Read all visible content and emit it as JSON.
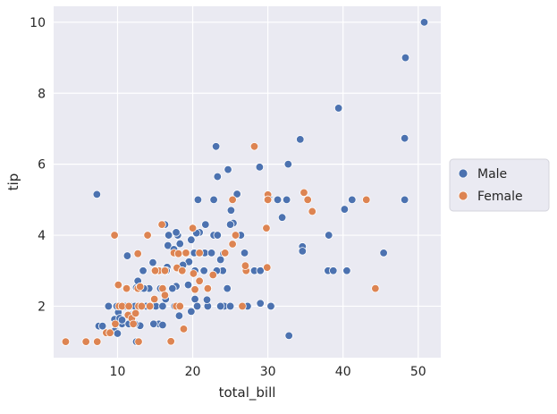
{
  "chart_data": {
    "type": "scatter",
    "title": "",
    "xlabel": "total_bill",
    "ylabel": "tip",
    "xlim": [
      1.5,
      53.0
    ],
    "ylim": [
      0.55,
      10.45
    ],
    "xticks": [
      10,
      20,
      30,
      40,
      50
    ],
    "yticks": [
      2,
      4,
      6,
      8,
      10
    ],
    "grid": true,
    "legend": {
      "position": "center-right"
    },
    "colors": {
      "Male": "#4c72b0",
      "Female": "#dd8452",
      "plot_bg": "#eaeaf2",
      "grid": "#ffffff",
      "legend_bg": "#eaeaf2"
    },
    "series": [
      {
        "name": "Male",
        "points": [
          [
            50.8,
            10.0
          ],
          [
            48.3,
            9.0
          ],
          [
            39.4,
            7.58
          ],
          [
            48.2,
            6.73
          ],
          [
            34.3,
            6.7
          ],
          [
            23.1,
            6.5
          ],
          [
            32.7,
            6.0
          ],
          [
            28.9,
            5.92
          ],
          [
            24.7,
            5.85
          ],
          [
            23.3,
            5.65
          ],
          [
            25.9,
            5.16
          ],
          [
            30.1,
            5.07
          ],
          [
            29.9,
            5.0
          ],
          [
            31.3,
            5.0
          ],
          [
            32.5,
            5.0
          ],
          [
            41.2,
            5.0
          ],
          [
            48.2,
            5.0
          ],
          [
            22.8,
            5.0
          ],
          [
            20.7,
            5.0
          ],
          [
            7.25,
            5.15
          ],
          [
            31.9,
            4.5
          ],
          [
            25.1,
            4.7
          ],
          [
            40.2,
            4.73
          ],
          [
            25.4,
            4.34
          ],
          [
            25.0,
            4.3
          ],
          [
            16.3,
            4.3
          ],
          [
            20.9,
            4.08
          ],
          [
            20.5,
            4.06
          ],
          [
            18.0,
            4.0
          ],
          [
            16.8,
            4.0
          ],
          [
            21.7,
            4.3
          ],
          [
            22.8,
            4.0
          ],
          [
            26.4,
            4.0
          ],
          [
            38.1,
            4.0
          ],
          [
            23.3,
            4.0
          ],
          [
            17.8,
            4.08
          ],
          [
            19.8,
            3.87
          ],
          [
            21.0,
            3.5
          ],
          [
            24.1,
            3.48
          ],
          [
            34.6,
            3.68
          ],
          [
            34.6,
            3.55
          ],
          [
            45.4,
            3.5
          ],
          [
            16.7,
            3.71
          ],
          [
            18.3,
            3.76
          ],
          [
            17.5,
            3.6
          ],
          [
            26.9,
            3.5
          ],
          [
            28.2,
            3.0
          ],
          [
            29.0,
            3.0
          ],
          [
            38.0,
            3.0
          ],
          [
            38.7,
            3.0
          ],
          [
            40.5,
            3.0
          ],
          [
            15.4,
            3.0
          ],
          [
            17.9,
            3.08
          ],
          [
            19.5,
            3.25
          ],
          [
            20.2,
            3.5
          ],
          [
            21.6,
            3.5
          ],
          [
            23.7,
            3.31
          ],
          [
            22.5,
            3.5
          ],
          [
            24.0,
            3.0
          ],
          [
            14.7,
            3.23
          ],
          [
            15.0,
            3.0
          ],
          [
            16.6,
            3.1
          ],
          [
            18.5,
            3.0
          ],
          [
            20.3,
            3.0
          ],
          [
            21.5,
            3.0
          ],
          [
            13.4,
            3.0
          ],
          [
            11.3,
            3.42
          ],
          [
            16.0,
            3.0
          ],
          [
            18.7,
            3.16
          ],
          [
            23.2,
            3.0
          ],
          [
            17.8,
            2.56
          ],
          [
            19.4,
            2.6
          ],
          [
            14.2,
            2.5
          ],
          [
            12.5,
            2.52
          ],
          [
            13.0,
            2.5
          ],
          [
            15.7,
            2.5
          ],
          [
            17.3,
            2.5
          ],
          [
            22.0,
            2.5
          ],
          [
            24.6,
            2.5
          ],
          [
            13.5,
            2.5
          ],
          [
            16.4,
            2.2
          ],
          [
            20.3,
            2.2
          ],
          [
            10.1,
            1.83
          ],
          [
            9.6,
            1.63
          ],
          [
            10.3,
            1.66
          ],
          [
            12.0,
            1.5
          ],
          [
            10.6,
            1.5
          ],
          [
            11.5,
            1.5
          ],
          [
            15.5,
            1.5
          ],
          [
            8.8,
            2.0
          ],
          [
            9.9,
            2.0
          ],
          [
            10.6,
            1.61
          ],
          [
            9.7,
            1.32
          ],
          [
            10.3,
            2.0
          ],
          [
            11.0,
            2.0
          ],
          [
            11.8,
            2.0
          ],
          [
            12.3,
            2.0
          ],
          [
            13.3,
            2.0
          ],
          [
            14.0,
            2.0
          ],
          [
            15.1,
            2.0
          ],
          [
            16.0,
            2.0
          ],
          [
            17.6,
            2.0
          ],
          [
            18.2,
            1.73
          ],
          [
            19.8,
            1.85
          ],
          [
            20.6,
            2.0
          ],
          [
            22.0,
            2.0
          ],
          [
            24.2,
            2.0
          ],
          [
            30.5,
            2.0
          ],
          [
            14.8,
            1.5
          ],
          [
            13.0,
            1.45
          ],
          [
            12.5,
            1.0
          ],
          [
            7.5,
            1.44
          ],
          [
            8.0,
            1.44
          ],
          [
            32.8,
            1.17
          ],
          [
            27.3,
            2.0
          ],
          [
            29.0,
            2.08
          ],
          [
            30.4,
            2.0
          ],
          [
            21.9,
            2.18
          ],
          [
            16.0,
            1.47
          ],
          [
            11.6,
            1.76
          ],
          [
            12.3,
            1.5
          ],
          [
            9.6,
            1.3
          ],
          [
            10.0,
            1.23
          ],
          [
            14.3,
            2.0
          ],
          [
            25.0,
            2.0
          ],
          [
            23.7,
            2.0
          ],
          [
            12.7,
            2.71
          ],
          [
            13.8,
            2.0
          ],
          [
            19.1,
            3.5
          ],
          [
            16.5,
            3.0
          ]
        ]
      },
      {
        "name": "Female",
        "points": [
          [
            28.2,
            6.5
          ],
          [
            35.3,
            5.0
          ],
          [
            30.0,
            5.14
          ],
          [
            34.8,
            5.2
          ],
          [
            35.9,
            4.67
          ],
          [
            43.1,
            5.0
          ],
          [
            25.3,
            5.0
          ],
          [
            29.8,
            4.2
          ],
          [
            15.9,
            4.3
          ],
          [
            20.0,
            4.2
          ],
          [
            9.6,
            4.0
          ],
          [
            14.0,
            4.0
          ],
          [
            25.7,
            4.0
          ],
          [
            30.0,
            5.0
          ],
          [
            19.1,
            3.5
          ],
          [
            17.5,
            3.5
          ],
          [
            24.3,
            3.5
          ],
          [
            20.9,
            3.5
          ],
          [
            18.1,
            3.48
          ],
          [
            25.3,
            3.75
          ],
          [
            12.7,
            3.48
          ],
          [
            17.9,
            3.08
          ],
          [
            20.1,
            2.92
          ],
          [
            22.7,
            2.88
          ],
          [
            27.1,
            3.0
          ],
          [
            29.9,
            3.09
          ],
          [
            44.3,
            2.5
          ],
          [
            27.0,
            3.14
          ],
          [
            15.5,
            3.0
          ],
          [
            20.9,
            2.71
          ],
          [
            18.6,
            3.0
          ],
          [
            16.3,
            3.0
          ],
          [
            11.2,
            2.5
          ],
          [
            16.0,
            2.5
          ],
          [
            12.7,
            2.5
          ],
          [
            16.3,
            2.31
          ],
          [
            20.3,
            2.47
          ],
          [
            26.6,
            2.0
          ],
          [
            17.8,
            2.0
          ],
          [
            14.3,
            2.0
          ],
          [
            10.2,
            2.0
          ],
          [
            10.6,
            2.0
          ],
          [
            12.8,
            2.0
          ],
          [
            13.2,
            2.0
          ],
          [
            11.4,
            1.75
          ],
          [
            11.9,
            1.66
          ],
          [
            12.4,
            1.8
          ],
          [
            9.7,
            1.5
          ],
          [
            8.5,
            1.25
          ],
          [
            9.0,
            1.25
          ],
          [
            3.1,
            1.0
          ],
          [
            5.8,
            1.0
          ],
          [
            7.3,
            1.0
          ],
          [
            12.8,
            1.0
          ],
          [
            17.1,
            1.01
          ],
          [
            18.8,
            1.36
          ],
          [
            10.1,
            2.6
          ],
          [
            12.1,
            1.5
          ],
          [
            15.0,
            3.0
          ],
          [
            13.0,
            2.55
          ],
          [
            14.9,
            2.2
          ],
          [
            22.0,
            2.5
          ],
          [
            18.3,
            2.0
          ],
          [
            11.5,
            2.0
          ]
        ]
      }
    ]
  }
}
